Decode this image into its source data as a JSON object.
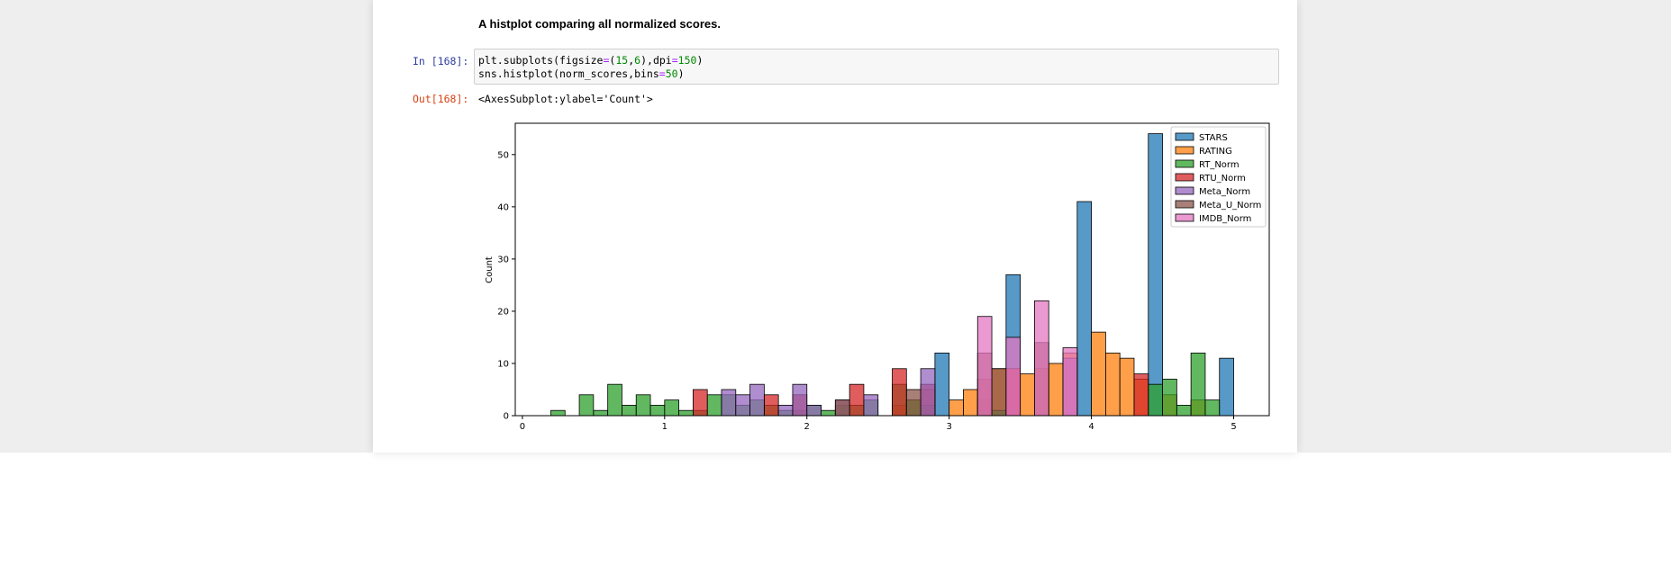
{
  "cells": {
    "markdown_text": "A histplot comparing all normalized scores.",
    "in_prompt": "In [168]:",
    "out_prompt": "Out[168]:",
    "output_text": "<AxesSubplot:ylabel='Count'>"
  },
  "code": {
    "line1": {
      "a": "plt.subplots(figsize",
      "b": "=",
      "c": "(",
      "d": "15",
      "e": ",",
      "f": "6",
      "g": "),dpi",
      "h": "=",
      "i": "150",
      "j": ")"
    },
    "line2": {
      "a": "sns.histplot(norm_scores,bins",
      "b": "=",
      "c": "50",
      "d": ")"
    }
  },
  "chart_data": {
    "type": "bar",
    "title": "",
    "xlabel": "",
    "ylabel": "Count",
    "xlim": [
      -0.05,
      5.25
    ],
    "ylim": [
      0,
      56
    ],
    "x_ticks": [
      0,
      1,
      2,
      3,
      4,
      5
    ],
    "y_ticks": [
      0,
      10,
      20,
      30,
      40,
      50
    ],
    "bin_width": 0.1,
    "legend_position": "top-right",
    "series": [
      {
        "name": "STARS",
        "color": "#1f77b4",
        "bins": [
          [
            2.9,
            3.0,
            12
          ],
          [
            3.4,
            3.5,
            27
          ],
          [
            3.9,
            4.0,
            41
          ],
          [
            4.4,
            4.5,
            54
          ],
          [
            4.9,
            5.0,
            11
          ]
        ]
      },
      {
        "name": "RATING",
        "color": "#ff7f0e",
        "bins": [
          [
            2.6,
            2.7,
            2
          ],
          [
            2.7,
            2.8,
            3
          ],
          [
            2.8,
            2.9,
            5
          ],
          [
            3.0,
            3.1,
            3
          ],
          [
            3.1,
            3.2,
            5
          ],
          [
            3.2,
            3.3,
            3
          ],
          [
            3.3,
            3.4,
            9
          ],
          [
            3.5,
            3.6,
            8
          ],
          [
            3.6,
            3.7,
            9
          ],
          [
            3.7,
            3.8,
            10
          ],
          [
            3.8,
            3.9,
            12
          ],
          [
            4.0,
            4.1,
            16
          ],
          [
            4.1,
            4.2,
            12
          ],
          [
            4.2,
            4.3,
            11
          ],
          [
            4.3,
            4.4,
            7
          ],
          [
            4.5,
            4.6,
            4
          ],
          [
            4.7,
            4.8,
            3
          ]
        ]
      },
      {
        "name": "RT_Norm",
        "color": "#2ca02c",
        "bins": [
          [
            0.2,
            0.3,
            1
          ],
          [
            0.4,
            0.5,
            4
          ],
          [
            0.5,
            0.6,
            1
          ],
          [
            0.6,
            0.7,
            6
          ],
          [
            0.7,
            0.8,
            2
          ],
          [
            0.8,
            0.9,
            4
          ],
          [
            0.9,
            1.0,
            2
          ],
          [
            1.0,
            1.1,
            3
          ],
          [
            1.1,
            1.2,
            1
          ],
          [
            1.2,
            1.3,
            1
          ],
          [
            1.3,
            1.4,
            4
          ],
          [
            1.4,
            1.5,
            4
          ],
          [
            1.5,
            1.6,
            2
          ],
          [
            1.6,
            1.7,
            3
          ],
          [
            1.7,
            1.8,
            2
          ],
          [
            1.8,
            1.9,
            1
          ],
          [
            1.9,
            2.0,
            1
          ],
          [
            2.0,
            2.1,
            2
          ],
          [
            2.1,
            2.2,
            1
          ],
          [
            2.2,
            2.3,
            2
          ],
          [
            2.3,
            2.4,
            2
          ],
          [
            2.4,
            2.5,
            3
          ],
          [
            2.6,
            2.7,
            6
          ],
          [
            2.7,
            2.8,
            3
          ],
          [
            2.8,
            2.9,
            2
          ],
          [
            3.2,
            3.3,
            1
          ],
          [
            3.3,
            3.4,
            1
          ],
          [
            4.4,
            4.5,
            6
          ],
          [
            4.5,
            4.6,
            7
          ],
          [
            4.6,
            4.7,
            2
          ],
          [
            4.7,
            4.8,
            12
          ],
          [
            4.8,
            4.9,
            3
          ]
        ]
      },
      {
        "name": "RTU_Norm",
        "color": "#d62728",
        "bins": [
          [
            1.2,
            1.3,
            5
          ],
          [
            1.7,
            1.8,
            4
          ],
          [
            1.9,
            2.0,
            4
          ],
          [
            2.3,
            2.4,
            6
          ],
          [
            2.6,
            2.7,
            9
          ],
          [
            2.8,
            2.9,
            6
          ],
          [
            3.2,
            3.3,
            7
          ],
          [
            3.4,
            3.5,
            9
          ],
          [
            4.3,
            4.4,
            8
          ]
        ]
      },
      {
        "name": "Meta_Norm",
        "color": "#9467bd",
        "bins": [
          [
            1.4,
            1.5,
            5
          ],
          [
            1.5,
            1.6,
            4
          ],
          [
            1.6,
            1.7,
            6
          ],
          [
            1.8,
            1.9,
            2
          ],
          [
            1.9,
            2.0,
            6
          ],
          [
            2.0,
            2.1,
            2
          ],
          [
            2.2,
            2.3,
            3
          ],
          [
            2.4,
            2.5,
            4
          ],
          [
            2.8,
            2.9,
            9
          ],
          [
            3.8,
            3.9,
            11
          ]
        ]
      },
      {
        "name": "Meta_U_Norm",
        "color": "#8c564b",
        "bins": [
          [
            2.2,
            2.3,
            3
          ],
          [
            2.7,
            2.8,
            5
          ],
          [
            3.2,
            3.3,
            12
          ],
          [
            3.3,
            3.4,
            9
          ],
          [
            3.6,
            3.7,
            14
          ]
        ]
      },
      {
        "name": "IMDB_Norm",
        "color": "#e377c2",
        "bins": [
          [
            3.2,
            3.3,
            19
          ],
          [
            3.4,
            3.5,
            15
          ],
          [
            3.6,
            3.7,
            22
          ],
          [
            3.8,
            3.9,
            13
          ]
        ]
      }
    ]
  }
}
